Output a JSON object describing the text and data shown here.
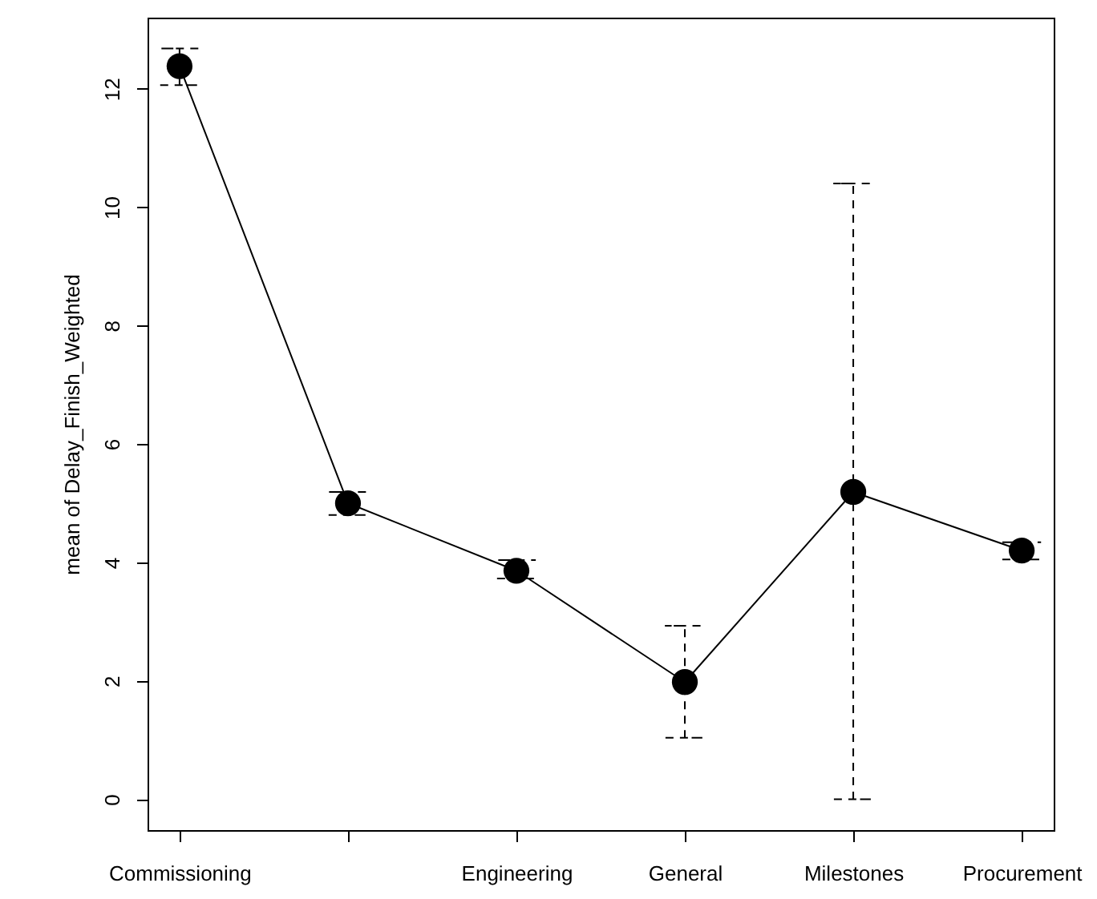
{
  "chart_data": {
    "type": "line",
    "ylabel": "mean of Delay_Finish_Weighted",
    "categories": [
      "Commissioning",
      null,
      "Engineering",
      "General",
      "Milestones",
      "Procurement"
    ],
    "series": [
      {
        "color": "#000000",
        "values": [
          12.38,
          5.0,
          3.86,
          1.98,
          5.19,
          4.2
        ],
        "errors": [
          [
            12.06,
            12.68
          ],
          [
            4.8,
            5.19
          ],
          [
            3.73,
            4.04
          ],
          [
            1.04,
            2.93
          ],
          [
            0.0,
            10.4
          ],
          [
            4.05,
            4.34
          ]
        ]
      }
    ],
    "ylim": [
      -0.52,
      13.2
    ],
    "yticks": [
      0,
      2,
      4,
      6,
      8,
      10,
      12
    ],
    "grid": false,
    "marker": "circle",
    "line_style": "solid"
  }
}
